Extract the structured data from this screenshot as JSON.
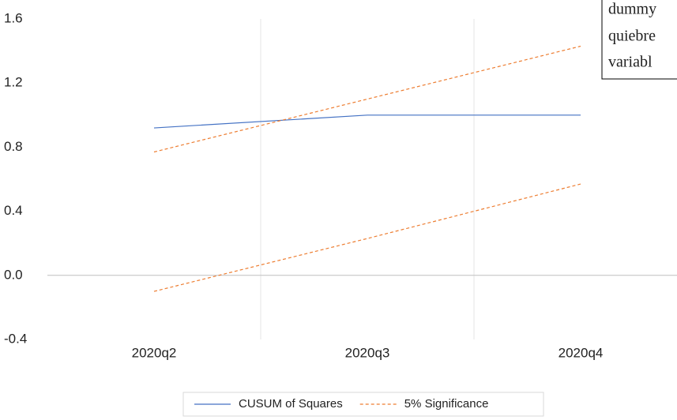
{
  "chart_data": {
    "type": "line",
    "categories": [
      "2020q2",
      "2020q3",
      "2020q4"
    ],
    "series": [
      {
        "name": "CUSUM of Squares",
        "color": "#4472c4",
        "dash": "solid",
        "values": [
          0.92,
          1.0,
          1.0
        ]
      },
      {
        "name": "5% Significance",
        "color": "#ed7d31",
        "dash": "dashed",
        "values": [
          0.77,
          1.1,
          1.43
        ],
        "lower_values": [
          -0.1,
          0.23,
          0.57
        ]
      }
    ],
    "ylim": [
      -0.4,
      1.6
    ],
    "yticks": [
      {
        "value": -0.4,
        "label": "-0.4"
      },
      {
        "value": 0,
        "label": "0.0"
      },
      {
        "value": 0.4,
        "label": "0.4"
      },
      {
        "value": 0.8,
        "label": "0.8"
      },
      {
        "value": 1.2,
        "label": "1.2"
      },
      1.6
    ],
    "grid": "x",
    "legend": "bottom",
    "annotation": [
      "dummy",
      "quiebre",
      "variabl"
    ]
  }
}
